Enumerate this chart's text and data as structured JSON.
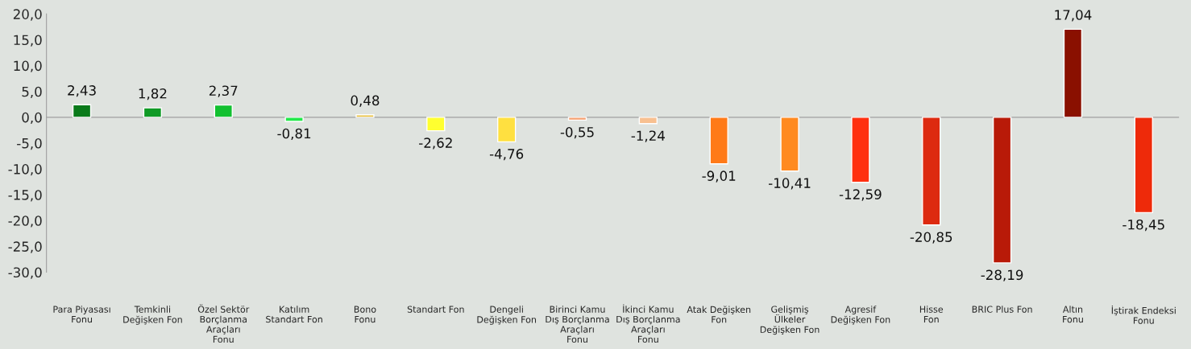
{
  "chart_data": {
    "type": "bar",
    "categories": [
      "Para Piyasası\nFonu",
      "Temkinli\nDeğişken Fon",
      "Özel Sektör\nBorçlanma\nAraçları\nFonu",
      "Katılım\nStandart Fon",
      "Bono\nFonu",
      "Standart Fon",
      "Dengeli\nDeğişken Fon",
      "Birinci Kamu\nDış Borçlanma\nAraçları\nFonu",
      "İkinci Kamu\nDış Borçlanma\nAraçları\nFonu",
      "Atak Değişken\nFon",
      "Gelişmiş\nÜlkeler\nDeğişken Fon",
      "Agresif\nDeğişken Fon",
      "Hisse\nFon",
      "BRIC Plus Fon",
      "Altın\nFonu",
      "İştirak Endeksi\nFonu"
    ],
    "values": [
      2.43,
      1.82,
      2.37,
      -0.81,
      0.48,
      -2.62,
      -4.76,
      -0.55,
      -1.24,
      -9.01,
      -10.41,
      -12.59,
      -20.85,
      -28.19,
      17.04,
      -18.45
    ],
    "value_labels": [
      "2,43",
      "1,82",
      "2,37",
      "-0,81",
      "0,48",
      "-2,62",
      "-4,76",
      "-0,55",
      "-1,24",
      "-9,01",
      "-10,41",
      "-12,59",
      "-20,85",
      "-28,19",
      "17,04",
      "-18,45"
    ],
    "colors": [
      "#0a7a1a",
      "#0f9a25",
      "#12c030",
      "#22e84a",
      "#e8c040",
      "#ffff30",
      "#ffe040",
      "#f4a070",
      "#f8c090",
      "#ff7a18",
      "#ff8a20",
      "#ff3010",
      "#dd2a10",
      "#b81a08",
      "#8a1000",
      "#ee2a0a"
    ],
    "ylim": [
      -30,
      20
    ],
    "yticks": [
      {
        "value": -30,
        "label": "-30,0"
      },
      {
        "value": -25,
        "label": "-25,0"
      },
      {
        "value": -20,
        "label": "-20,0"
      },
      {
        "value": -15,
        "label": "-15,0"
      },
      {
        "value": -10,
        "label": "-10,0"
      },
      {
        "value": -5,
        "label": "-5,0"
      },
      {
        "value": 0,
        "label": "0,0"
      },
      {
        "value": 5,
        "label": "5,0"
      },
      {
        "value": 10,
        "label": "10,0"
      },
      {
        "value": 15,
        "label": "15,0"
      },
      {
        "value": 20,
        "label": "20,0"
      }
    ],
    "ref_lines": [
      {
        "axis": "y",
        "value": 0,
        "color": "#a0a0a0"
      }
    ],
    "grid": false,
    "legend": false
  }
}
